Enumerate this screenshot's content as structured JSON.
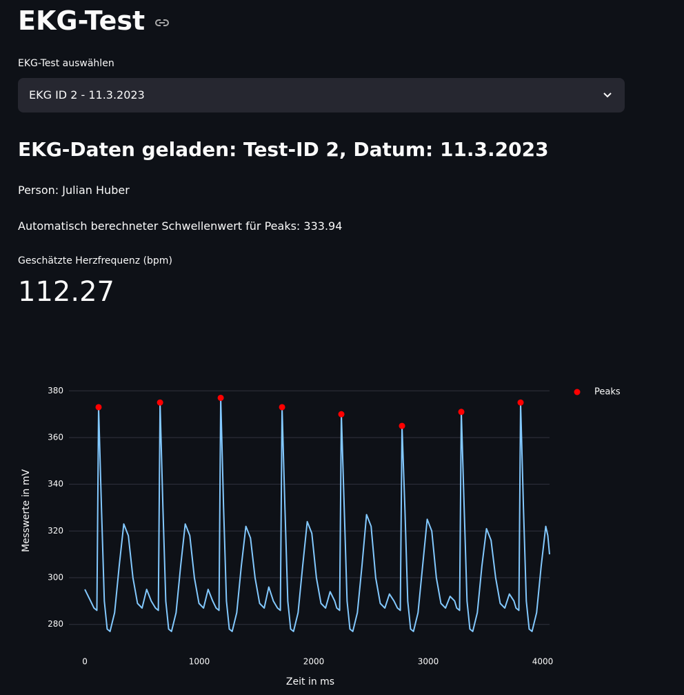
{
  "title": "EKG-Test",
  "select": {
    "label": "EKG-Test auswählen",
    "value": "EKG ID 2 - 11.3.2023"
  },
  "subheader": "EKG-Daten geladen: Test-ID 2, Datum: 11.3.2023",
  "person": "Person: Julian Huber",
  "threshold": "Automatisch berechneter Schwellenwert für Peaks: 333.94",
  "metric": {
    "label": "Geschätzte Herzfrequenz (bpm)",
    "value": "112.27"
  },
  "chart_data": {
    "type": "line",
    "xlabel": "Zeit in ms",
    "ylabel": "Messwerte in mV",
    "xlim": [
      -139,
      4060
    ],
    "ylim": [
      274,
      386
    ],
    "xticks": [
      0,
      1000,
      2000,
      3000,
      4000
    ],
    "yticks": [
      280,
      300,
      320,
      340,
      360,
      380
    ],
    "grid": true,
    "legend": "top-right-outside",
    "series": [
      {
        "color": "#83c9ff",
        "x": [
          0,
          40,
          80,
          105,
          120,
          145,
          170,
          195,
          220,
          260,
          300,
          340,
          380,
          420,
          460,
          500,
          540,
          580,
          617,
          642,
          657,
          682,
          707,
          732,
          757,
          797,
          837,
          877,
          917,
          957,
          997,
          1037,
          1077,
          1117,
          1147,
          1172,
          1187,
          1212,
          1237,
          1262,
          1287,
          1327,
          1367,
          1407,
          1447,
          1487,
          1527,
          1567,
          1607,
          1647,
          1683,
          1708,
          1723,
          1748,
          1773,
          1798,
          1823,
          1863,
          1903,
          1943,
          1983,
          2023,
          2063,
          2103,
          2143,
          2183,
          2201,
          2226,
          2241,
          2266,
          2291,
          2316,
          2341,
          2381,
          2421,
          2461,
          2501,
          2541,
          2581,
          2621,
          2661,
          2701,
          2731,
          2756,
          2771,
          2796,
          2821,
          2846,
          2871,
          2911,
          2951,
          2991,
          3031,
          3071,
          3111,
          3151,
          3191,
          3231,
          3249,
          3274,
          3289,
          3314,
          3339,
          3364,
          3389,
          3429,
          3469,
          3509,
          3549,
          3589,
          3629,
          3669,
          3709,
          3749,
          3767,
          3792,
          3807,
          3832,
          3857,
          3882,
          3907,
          3947,
          3987,
          4027,
          4045,
          4060
        ],
        "values": [
          295,
          291,
          287,
          286,
          373,
          330,
          290,
          278,
          277,
          285,
          305,
          323,
          318,
          300,
          289,
          287,
          295,
          290,
          287,
          286,
          375,
          330,
          290,
          278,
          277,
          285,
          305,
          323,
          318,
          300,
          289,
          287,
          295,
          290,
          287,
          286,
          377,
          330,
          290,
          278,
          277,
          285,
          305,
          322,
          317,
          300,
          289,
          287,
          296,
          290,
          287,
          286,
          373,
          330,
          290,
          278,
          277,
          285,
          305,
          324,
          319,
          300,
          289,
          287,
          294,
          290,
          287,
          286,
          370,
          330,
          290,
          278,
          277,
          285,
          305,
          327,
          322,
          300,
          289,
          287,
          293,
          290,
          287,
          286,
          365,
          330,
          290,
          278,
          277,
          285,
          305,
          325,
          320,
          300,
          289,
          287,
          292,
          290,
          287,
          286,
          371,
          330,
          290,
          278,
          277,
          285,
          305,
          321,
          316,
          300,
          289,
          287,
          293,
          290,
          287,
          286,
          375,
          330,
          290,
          278,
          277,
          285,
          305,
          322,
          318,
          310
        ]
      },
      {
        "name": "Peaks",
        "mode": "markers",
        "color": "#ff0000",
        "x": [
          120,
          657,
          1187,
          1723,
          2241,
          2771,
          3289,
          3807
        ],
        "values": [
          373,
          375,
          377,
          373,
          370,
          365,
          371,
          375
        ]
      }
    ]
  }
}
